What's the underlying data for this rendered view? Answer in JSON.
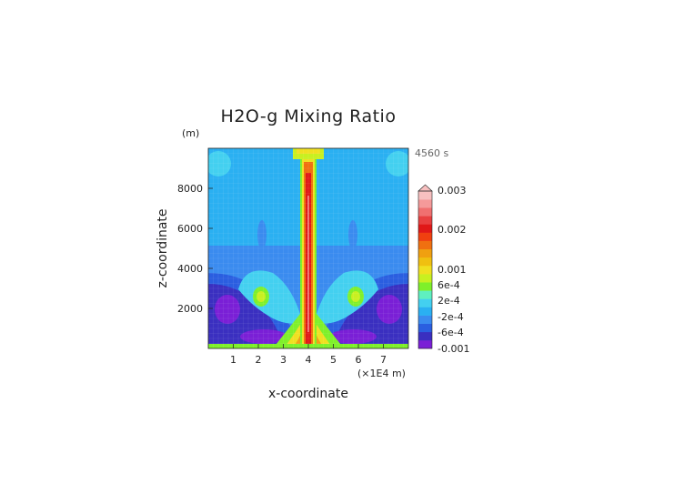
{
  "chart_data": {
    "type": "heatmap",
    "title": "H2O-g Mixing Ratio",
    "xlabel": "x-coordinate",
    "ylabel": "z-coordinate",
    "x_unit": "(×1E4 m)",
    "y_unit": "(m)",
    "time_label": "4560 s",
    "xlim": [
      0,
      8
    ],
    "ylim": [
      0,
      10000
    ],
    "x_ticks": [
      1,
      2,
      3,
      4,
      5,
      6,
      7
    ],
    "y_ticks": [
      2000,
      4000,
      6000,
      8000
    ],
    "colorbar": {
      "labels": [
        {
          "text": "0.003",
          "value": 0.003
        },
        {
          "text": "0.002",
          "value": 0.002
        },
        {
          "text": "0.001",
          "value": 0.001
        },
        {
          "text": "6e-4",
          "value": 0.0006
        },
        {
          "text": "2e-4",
          "value": 0.0002
        },
        {
          "text": "-2e-4",
          "value": -0.0002
        },
        {
          "text": "-6e-4",
          "value": -0.0006
        },
        {
          "text": "-0.001",
          "value": -0.001
        }
      ],
      "colors_bottom_to_top": [
        "#7a1fd6",
        "#3a2fc0",
        "#2a5ee0",
        "#3a8bef",
        "#2ab0f2",
        "#43d0f0",
        "#5ff0c0",
        "#7ff02a",
        "#c8f020",
        "#f0e020",
        "#f0c010",
        "#f0a010",
        "#f07010",
        "#f04010",
        "#e01818",
        "#e84040",
        "#f07070",
        "#f59a9a",
        "#f8c0c0"
      ],
      "extend_top_color": "#f8c0c0"
    }
  }
}
